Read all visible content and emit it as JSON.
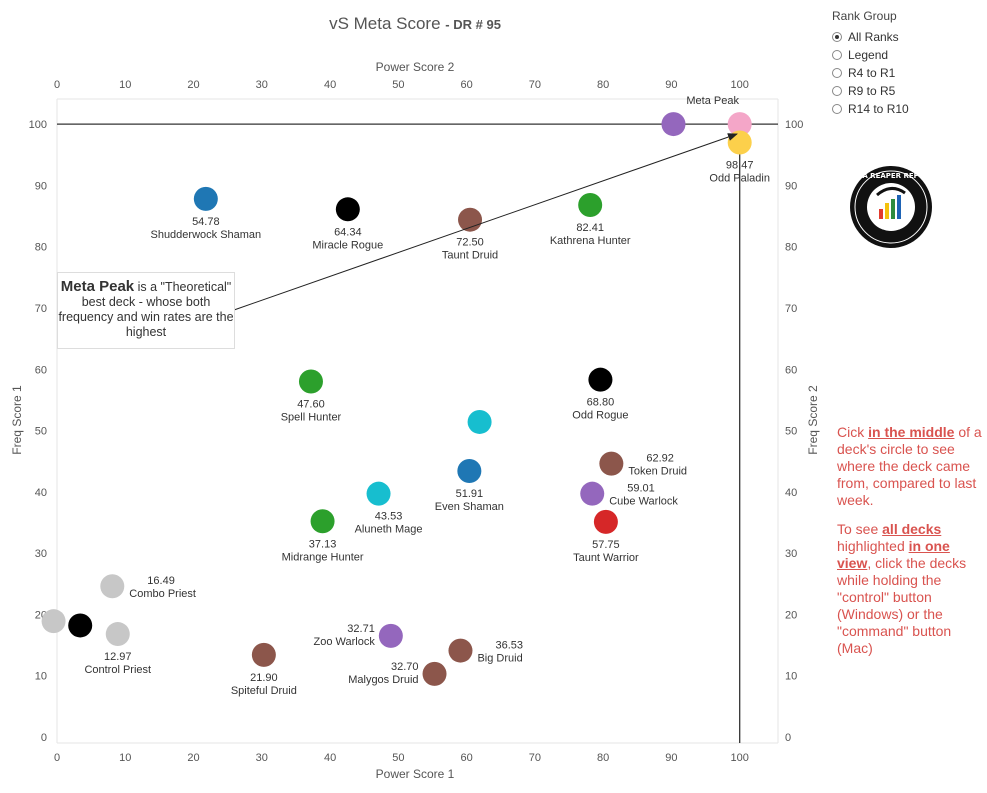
{
  "header": {
    "title": "vS Meta Score",
    "subtitle": "- DR # 95"
  },
  "legend": {
    "title": "Rank Group",
    "options": [
      "All Ranks",
      "Legend",
      "R4 to R1",
      "R9 to R5",
      "R14 to R10"
    ],
    "selected": "All Ranks"
  },
  "annotation": {
    "bold": "Meta Peak",
    "text": " is a \"Theoretical\" best deck - whose both frequency and win rates are the highest"
  },
  "help": {
    "p1_a": "Cick ",
    "p1_b": "in the middle",
    "p1_c": " of a deck's circle to see where the deck came from, compared to last week.",
    "p2_a": "To see ",
    "p2_b": "all decks ",
    "p2_c": " highlighted ",
    "p2_d": "in one view",
    "p2_e": ", click the decks while holding the \"control\" button (Windows) or the \"command\" button (Mac)"
  },
  "logo": {
    "icon": "data-reaper-report-logo",
    "text": "DATA REAPER REPORT"
  },
  "chart_data": {
    "type": "scatter",
    "x_label_bottom": "Power Score 1",
    "x_label_top": "Power Score 2",
    "y_label_left": "Freq Score 1",
    "y_label_right": "Freq Score 2",
    "xlim": [
      0,
      105
    ],
    "ylim": [
      0,
      105
    ],
    "x_ticks": [
      0,
      10,
      20,
      30,
      40,
      50,
      60,
      70,
      80,
      90,
      100
    ],
    "y_ticks": [
      0,
      10,
      20,
      30,
      40,
      50,
      60,
      70,
      80,
      90,
      100
    ],
    "meta_peak": {
      "label": "Meta Peak",
      "x": 100,
      "y": 100
    },
    "points": [
      {
        "name": "Meta Peak",
        "score": "",
        "x": 100,
        "y": 100,
        "color": "#f4a6c8",
        "label_pos": "top-left"
      },
      {
        "name": "",
        "score": "",
        "x": 90.3,
        "y": 100,
        "color": "#9467bd",
        "label_pos": "none"
      },
      {
        "name": "Odd Paladin",
        "score": "98.47",
        "x": 100,
        "y": 97,
        "color": "#fcd04b",
        "label_pos": "below"
      },
      {
        "name": "Shudderwock Shaman",
        "score": "54.78",
        "x": 21.8,
        "y": 87.8,
        "color": "#1f77b4",
        "label_pos": "below"
      },
      {
        "name": "Miracle Rogue",
        "score": "64.34",
        "x": 42.6,
        "y": 86.1,
        "color": "#000000",
        "label_pos": "below"
      },
      {
        "name": "Taunt Druid",
        "score": "72.50",
        "x": 60.5,
        "y": 84.4,
        "color": "#8c564b",
        "label_pos": "below"
      },
      {
        "name": "Kathrena Hunter",
        "score": "82.41",
        "x": 78.1,
        "y": 86.8,
        "color": "#2ca02c",
        "label_pos": "below"
      },
      {
        "name": "Spell Hunter",
        "score": "47.60",
        "x": 37.2,
        "y": 58,
        "color": "#2ca02c",
        "label_pos": "below"
      },
      {
        "name": "Odd Rogue",
        "score": "68.80",
        "x": 79.6,
        "y": 58.3,
        "color": "#000000",
        "label_pos": "below"
      },
      {
        "name": "",
        "score": "",
        "x": 61.9,
        "y": 51.4,
        "color": "#17becf",
        "label_pos": "none"
      },
      {
        "name": "Even Shaman",
        "score": "51.91",
        "x": 60.4,
        "y": 43.4,
        "color": "#1f77b4",
        "label_pos": "below"
      },
      {
        "name": "Token Druid",
        "score": "62.92",
        "x": 81.2,
        "y": 44.6,
        "color": "#8c564b",
        "label_pos": "right"
      },
      {
        "name": "Cube Warlock",
        "score": "59.01",
        "x": 78.4,
        "y": 39.7,
        "color": "#9467bd",
        "label_pos": "right"
      },
      {
        "name": "Aluneth Mage",
        "score": "43.53",
        "x": 47.1,
        "y": 39.7,
        "color": "#17becf",
        "label_pos": "below-left"
      },
      {
        "name": "Midrange Hunter",
        "score": "37.13",
        "x": 38.9,
        "y": 35.2,
        "color": "#2ca02c",
        "label_pos": "below"
      },
      {
        "name": "Taunt Warrior",
        "score": "57.75",
        "x": 80.4,
        "y": 35.1,
        "color": "#d62728",
        "label_pos": "below"
      },
      {
        "name": "Combo Priest",
        "score": "16.49",
        "x": 8.1,
        "y": 24.6,
        "color": "#c7c7c7",
        "label_pos": "right"
      },
      {
        "name": "",
        "score": "",
        "x": -0.5,
        "y": 18.9,
        "color": "#c7c7c7",
        "label_pos": "none"
      },
      {
        "name": "",
        "score": "",
        "x": 3.4,
        "y": 18.2,
        "color": "#000000",
        "label_pos": "none"
      },
      {
        "name": "Control Priest",
        "score": "12.97",
        "x": 8.9,
        "y": 16.8,
        "color": "#c7c7c7",
        "label_pos": "below"
      },
      {
        "name": "Zoo Warlock",
        "score": "32.71",
        "x": 48.9,
        "y": 16.5,
        "color": "#9467bd",
        "label_pos": "left"
      },
      {
        "name": "Big Druid",
        "score": "36.53",
        "x": 59.1,
        "y": 14.1,
        "color": "#8c564b",
        "label_pos": "right"
      },
      {
        "name": "Spiteful Druid",
        "score": "21.90",
        "x": 30.3,
        "y": 13.4,
        "color": "#8c564b",
        "label_pos": "below"
      },
      {
        "name": "Malygos Druid",
        "score": "32.70",
        "x": 55.3,
        "y": 10.3,
        "color": "#8c564b",
        "label_pos": "left"
      }
    ]
  }
}
